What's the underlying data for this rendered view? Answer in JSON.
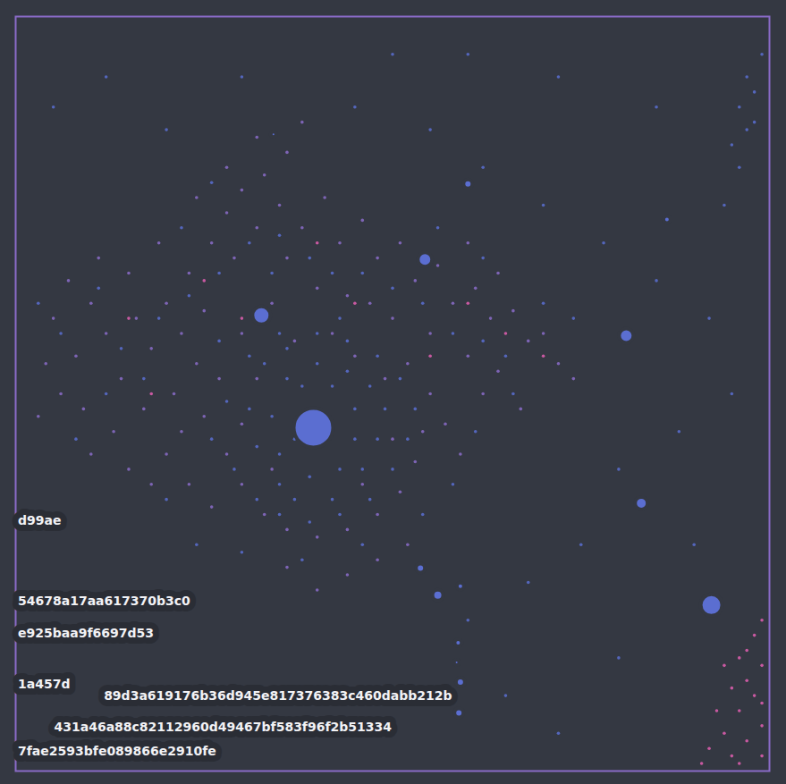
{
  "chart_data": {
    "type": "scatter",
    "tick_labels": false,
    "grid": false,
    "xlim": [
      0,
      100
    ],
    "ylim": [
      0,
      100
    ],
    "color": "#8a6bc8",
    "series": [
      {
        "color": "#8b6cc9",
        "x": [
          5,
          8,
          10,
          12,
          6,
          9,
          14,
          16,
          18,
          20,
          15,
          11,
          19,
          23,
          22,
          25,
          13,
          17,
          21,
          24,
          4,
          7,
          26,
          28,
          30,
          33,
          29,
          32,
          35,
          36,
          38,
          41,
          43,
          46,
          48,
          51,
          53,
          56,
          58,
          61,
          63,
          66,
          68,
          70,
          60,
          55,
          50,
          47,
          44,
          40,
          34,
          30,
          27,
          25,
          28,
          30,
          33,
          36,
          40,
          44,
          48,
          51,
          53,
          54,
          55,
          52,
          49,
          45,
          42,
          37,
          32,
          30,
          34,
          46,
          50,
          57,
          59,
          62,
          64,
          20,
          23,
          26,
          18,
          15,
          22,
          10,
          3,
          36,
          32,
          38,
          28,
          24,
          60,
          64,
          72,
          74,
          67,
          44,
          40,
          36,
          48,
          52
        ],
        "y": [
          60,
          55,
          62,
          58,
          50,
          48,
          52,
          60,
          56,
          62,
          66,
          68,
          70,
          66,
          58,
          61,
          45,
          48,
          50,
          54,
          54,
          65,
          70,
          74,
          77,
          79,
          68,
          72,
          75,
          68,
          72,
          76,
          70,
          73,
          68,
          70,
          65,
          67,
          62,
          64,
          60,
          61,
          57,
          58,
          55,
          58,
          60,
          62,
          63,
          64,
          62,
          58,
          52,
          47,
          42,
          38,
          34,
          32,
          31,
          32,
          34,
          37,
          41,
          45,
          50,
          54,
          52,
          55,
          58,
          57,
          52,
          46,
          40,
          38,
          44,
          46,
          42,
          50,
          53,
          42,
          38,
          35,
          38,
          40,
          45,
          42,
          47,
          82,
          84,
          86,
          80,
          76,
          70,
          66,
          54,
          52,
          48,
          26,
          24,
          27,
          28,
          30
        ]
      },
      {
        "color": "#5b6ed1",
        "x": [
          6,
          11,
          14,
          19,
          23,
          27,
          31,
          35,
          39,
          42,
          46,
          50,
          54,
          58,
          62,
          65,
          27,
          31,
          35,
          43,
          28,
          26,
          29,
          32,
          35,
          39,
          43,
          47,
          50,
          52,
          53,
          51,
          48,
          44,
          40,
          36,
          33,
          31,
          32,
          35,
          37,
          42,
          46,
          48,
          49,
          47,
          44,
          40,
          36,
          34,
          35,
          39,
          43,
          45,
          45,
          42,
          38,
          37,
          12,
          17,
          8,
          20,
          24,
          30,
          38,
          46,
          54,
          58,
          61,
          66,
          3,
          22,
          26,
          34,
          56,
          62,
          70,
          74,
          5,
          12,
          20,
          30,
          45,
          55,
          62,
          70,
          78,
          85,
          92,
          88,
          80,
          75,
          68,
          60,
          65,
          72,
          80,
          90,
          95,
          94,
          85,
          72,
          60,
          50,
          98,
          97,
          96,
          99,
          96,
          98,
          97,
          95
        ],
        "y": [
          58,
          64,
          56,
          60,
          63,
          66,
          70,
          71,
          68,
          66,
          66,
          64,
          62,
          58,
          57,
          55,
          57,
          55,
          58,
          60,
          49,
          44,
          40,
          36,
          34,
          33,
          34,
          36,
          40,
          44,
          48,
          52,
          55,
          57,
          58,
          56,
          54,
          48,
          43,
          38,
          36,
          36,
          40,
          44,
          48,
          51,
          53,
          54,
          52,
          47,
          42,
          39,
          40,
          44,
          48,
          51,
          51,
          44,
          50,
          52,
          44,
          36,
          30,
          29,
          28,
          30,
          34,
          38,
          45,
          50,
          62,
          72,
          78,
          66,
          72,
          68,
          62,
          60,
          88,
          92,
          85,
          92,
          88,
          85,
          80,
          75,
          70,
          65,
          60,
          45,
          40,
          30,
          25,
          20,
          10,
          5,
          15,
          30,
          50,
          75,
          88,
          92,
          95,
          95,
          90,
          85,
          80,
          95,
          88,
          86,
          92,
          83
        ]
      },
      {
        "color": "#e35fb2",
        "x": [
          95,
          97,
          99,
          96,
          98,
          99,
          97,
          94,
          92,
          99,
          98,
          96,
          93,
          95,
          99,
          97,
          91,
          94,
          99,
          96,
          15,
          25,
          40,
          60,
          45,
          30,
          18,
          55,
          70,
          65
        ],
        "y": [
          2,
          4,
          6,
          8,
          10,
          14,
          12,
          5,
          3,
          2,
          18,
          15,
          8,
          11,
          20,
          16,
          1,
          14,
          9,
          1,
          60,
          65,
          70,
          62,
          62,
          60,
          50,
          55,
          55,
          58
        ]
      }
    ],
    "blobs": {
      "color": "#5b6ed1",
      "x": [
        39.5,
        32.6,
        54.3,
        60,
        86.4,
        81,
        83,
        92.3,
        53.7,
        56,
        59,
        58.7,
        59,
        58.8,
        58.5,
        34.2
      ],
      "y": [
        45.5,
        60.4,
        67.8,
        77.8,
        73.1,
        57.7,
        35.5,
        22,
        26.9,
        23.3,
        24.5,
        17,
        11.8,
        7.7,
        14.4,
        84.4
      ],
      "size": [
        22,
        10,
        8,
        5,
        4,
        8,
        7,
        12,
        5,
        6,
        4,
        4,
        5,
        5,
        3,
        3
      ]
    },
    "annotations": [
      {
        "text": "d99ae",
        "x": 0.3,
        "y": 33.2
      },
      {
        "text": "54678a17aa617370b3c0",
        "x": 0.3,
        "y": 22.5
      },
      {
        "text": "e925baa9f6697d53",
        "x": 0.3,
        "y": 18.2
      },
      {
        "text": "1a457d",
        "x": 0.3,
        "y": 11.5
      },
      {
        "text": "89d3a619176b36d945e817376383c460dabb212b",
        "x": 11.7,
        "y": 9.9
      },
      {
        "text": "431a46a88c82112960d49467bf583f96f2b51334",
        "x": 5.1,
        "y": 5.8
      },
      {
        "text": "7fae2593bfe089866e2910fe",
        "x": 0.3,
        "y": 2.6
      }
    ]
  }
}
